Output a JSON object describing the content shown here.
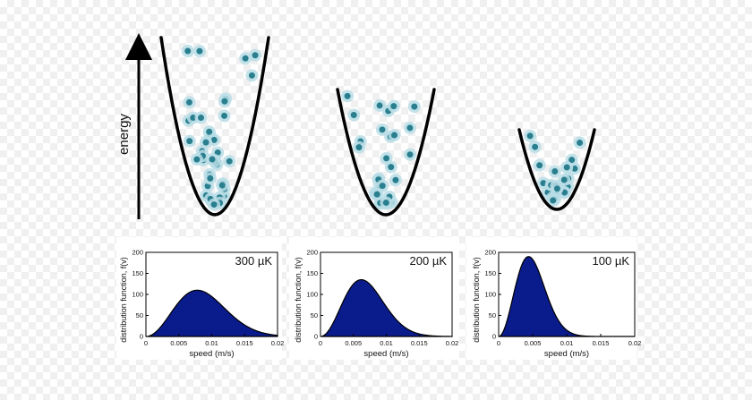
{
  "energy_axis": {
    "label": "energy"
  },
  "atom_colors": {
    "core": "#2a7f8f",
    "halo": "#b9dde6",
    "trap": "#000000",
    "fill": "#0a1b8c"
  },
  "traps": [
    {
      "temperature": "300 µK"
    },
    {
      "temperature": "200 µK"
    },
    {
      "temperature": "100 µK"
    }
  ],
  "chart_data": [
    {
      "type": "area",
      "annotation": "300 µK",
      "xlabel": "speed (m/s)",
      "ylabel": "distribution function, f(v)",
      "xlim": [
        0,
        0.02
      ],
      "ylim": [
        0,
        200
      ],
      "xticks": [
        "0",
        "0.005",
        "0.01",
        "0.015",
        "0.02"
      ],
      "yticks": [
        "0",
        "50",
        "100",
        "150",
        "200"
      ],
      "peak": {
        "x": 0.0078,
        "y": 110
      }
    },
    {
      "type": "area",
      "annotation": "200 µK",
      "xlabel": "speed (m/s)",
      "ylabel": "distribution function, f(v)",
      "xlim": [
        0,
        0.02
      ],
      "ylim": [
        0,
        200
      ],
      "xticks": [
        "0",
        "0.005",
        "0.01",
        "0.015",
        "0.02"
      ],
      "yticks": [
        "0",
        "50",
        "100",
        "150",
        "200"
      ],
      "peak": {
        "x": 0.0062,
        "y": 135
      }
    },
    {
      "type": "area",
      "annotation": "100 µK",
      "xlabel": "speed (m/s)",
      "ylabel": "distribution function, f(v)",
      "xlim": [
        0,
        0.02
      ],
      "ylim": [
        0,
        200
      ],
      "xticks": [
        "0",
        "0.005",
        "0.01",
        "0.015",
        "0.02"
      ],
      "yticks": [
        "0",
        "50",
        "100",
        "150",
        "200"
      ],
      "peak": {
        "x": 0.0044,
        "y": 190
      }
    }
  ]
}
